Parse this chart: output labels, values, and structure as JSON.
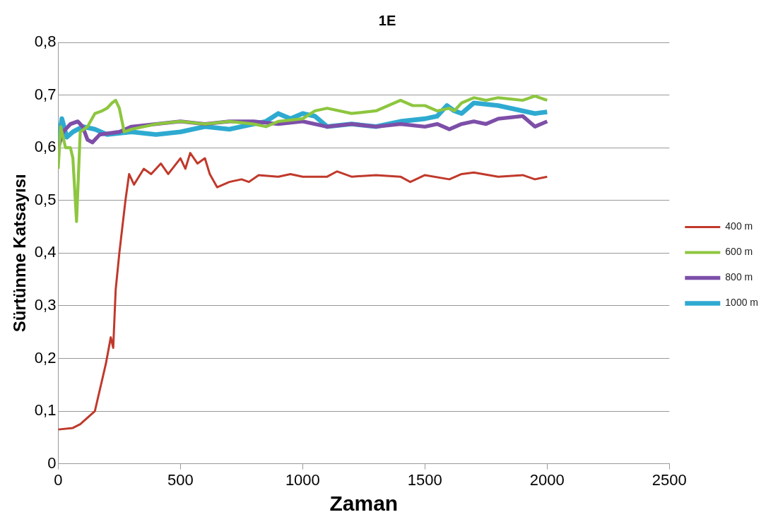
{
  "chart_data": {
    "type": "line",
    "title": "1E",
    "xlabel": "Zaman",
    "ylabel": "Sürtünme Katsayısı",
    "xlim": [
      0,
      2500
    ],
    "xticks": [
      0,
      500,
      1000,
      1500,
      2000,
      2500
    ],
    "ylim": [
      0,
      0.8
    ],
    "yticks": [
      0,
      {
        "value": 0.1,
        "label": "0,1"
      },
      {
        "value": 0.2,
        "label": "0,2"
      },
      {
        "value": 0.3,
        "label": "0,3"
      },
      {
        "value": 0.4,
        "label": "0,4"
      },
      {
        "value": 0.5,
        "label": "0,5"
      },
      {
        "value": 0.6,
        "label": "0,6"
      },
      {
        "value": 0.7,
        "label": "0,7"
      },
      {
        "value": 0.8,
        "label": "0,8"
      }
    ],
    "grid": "y",
    "legend": "right",
    "marker": "none",
    "line_style": "solid",
    "series": [
      {
        "name": "400 m",
        "color": "#c0392b",
        "x": [
          0,
          60,
          90,
          150,
          175,
          195,
          215,
          225,
          235,
          250,
          275,
          290,
          310,
          350,
          380,
          420,
          450,
          500,
          520,
          540,
          570,
          600,
          620,
          650,
          700,
          750,
          780,
          820,
          900,
          950,
          1000,
          1100,
          1140,
          1200,
          1300,
          1400,
          1440,
          1500,
          1600,
          1650,
          1700,
          1800,
          1900,
          1950,
          2000
        ],
        "values": [
          0.065,
          0.068,
          0.075,
          0.1,
          0.15,
          0.19,
          0.24,
          0.22,
          0.33,
          0.4,
          0.5,
          0.55,
          0.53,
          0.56,
          0.55,
          0.57,
          0.55,
          0.58,
          0.56,
          0.59,
          0.57,
          0.58,
          0.55,
          0.525,
          0.535,
          0.54,
          0.535,
          0.548,
          0.545,
          0.55,
          0.545,
          0.545,
          0.555,
          0.545,
          0.548,
          0.545,
          0.535,
          0.548,
          0.54,
          0.55,
          0.553,
          0.545,
          0.548,
          0.54,
          0.545
        ]
      },
      {
        "name": "600 m",
        "color": "#8dc63f",
        "x": [
          0,
          10,
          30,
          50,
          60,
          75,
          90,
          120,
          150,
          180,
          200,
          220,
          235,
          250,
          270,
          300,
          400,
          500,
          600,
          700,
          800,
          850,
          900,
          1000,
          1050,
          1100,
          1200,
          1300,
          1350,
          1400,
          1450,
          1500,
          1550,
          1600,
          1620,
          1650,
          1700,
          1750,
          1800,
          1900,
          1950,
          2000
        ],
        "values": [
          0.56,
          0.64,
          0.6,
          0.6,
          0.58,
          0.46,
          0.63,
          0.64,
          0.665,
          0.67,
          0.675,
          0.685,
          0.69,
          0.675,
          0.63,
          0.635,
          0.645,
          0.65,
          0.645,
          0.65,
          0.645,
          0.64,
          0.65,
          0.655,
          0.67,
          0.675,
          0.665,
          0.67,
          0.68,
          0.69,
          0.68,
          0.68,
          0.67,
          0.675,
          0.67,
          0.685,
          0.695,
          0.69,
          0.695,
          0.69,
          0.698,
          0.69
        ]
      },
      {
        "name": "800 m",
        "color": "#7d4fa8",
        "x": [
          0,
          20,
          50,
          80,
          100,
          120,
          140,
          170,
          250,
          300,
          400,
          500,
          600,
          700,
          800,
          900,
          1000,
          1100,
          1200,
          1300,
          1400,
          1500,
          1550,
          1600,
          1650,
          1700,
          1750,
          1800,
          1900,
          1950,
          2000
        ],
        "values": [
          0.6,
          0.63,
          0.645,
          0.65,
          0.64,
          0.615,
          0.61,
          0.625,
          0.63,
          0.64,
          0.645,
          0.65,
          0.645,
          0.65,
          0.65,
          0.645,
          0.65,
          0.64,
          0.645,
          0.64,
          0.645,
          0.64,
          0.645,
          0.635,
          0.645,
          0.65,
          0.645,
          0.655,
          0.66,
          0.64,
          0.65
        ]
      },
      {
        "name": "1000 m",
        "color": "#2eaad1",
        "x": [
          0,
          15,
          35,
          60,
          100,
          150,
          200,
          300,
          400,
          500,
          600,
          700,
          800,
          850,
          900,
          950,
          1000,
          1050,
          1100,
          1200,
          1300,
          1400,
          1500,
          1550,
          1590,
          1620,
          1650,
          1700,
          1800,
          1900,
          1950,
          2000
        ],
        "values": [
          0.61,
          0.655,
          0.62,
          0.63,
          0.64,
          0.635,
          0.625,
          0.63,
          0.625,
          0.63,
          0.64,
          0.635,
          0.645,
          0.65,
          0.665,
          0.655,
          0.665,
          0.66,
          0.64,
          0.645,
          0.64,
          0.65,
          0.655,
          0.66,
          0.68,
          0.67,
          0.665,
          0.685,
          0.68,
          0.67,
          0.665,
          0.668
        ]
      }
    ]
  }
}
